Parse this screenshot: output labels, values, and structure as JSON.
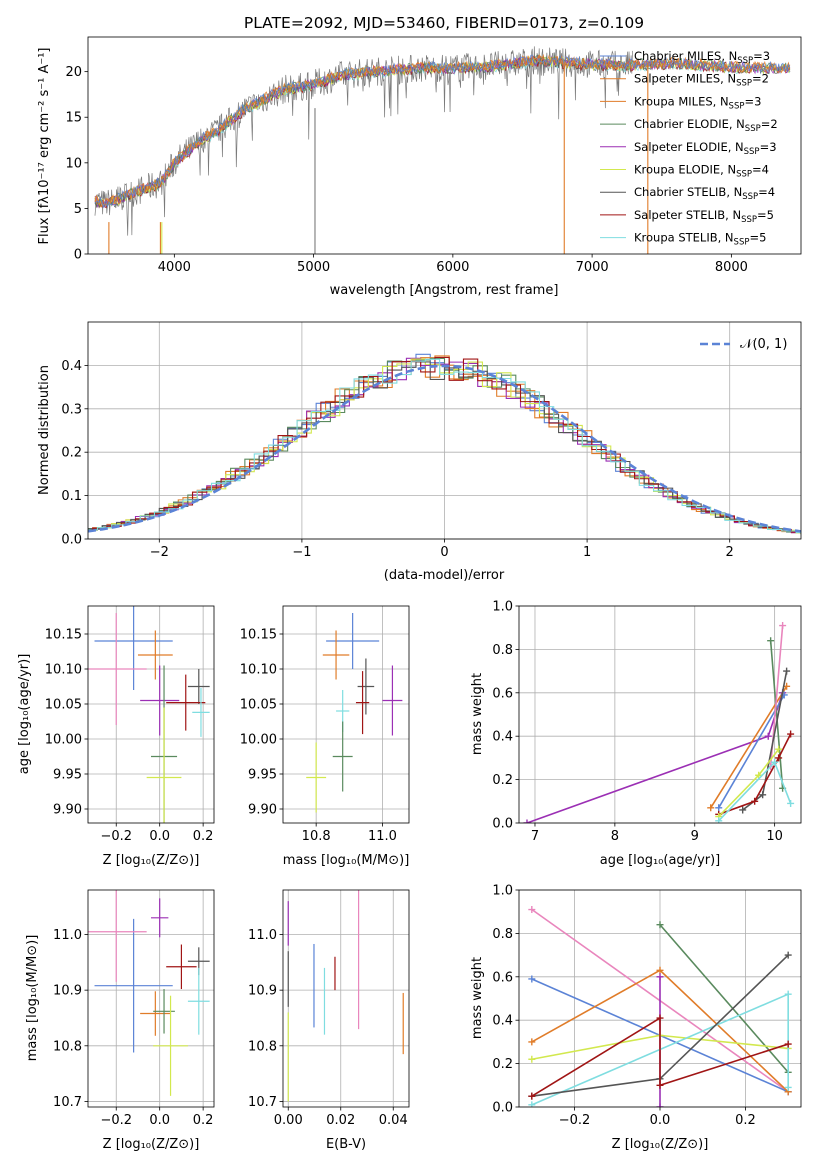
{
  "chart_data": [
    {
      "id": "spectrum",
      "type": "line",
      "title": "PLATE=2092, MJD=53460, FIBERID=0173, z=0.109",
      "xlabel": "wavelength [Angstrom, rest frame]",
      "ylabel": "Flux [fλ10⁻¹⁷ erg cm⁻² s⁻¹ A⁻¹]",
      "xlim": [
        3380,
        8500
      ],
      "ylim": [
        0,
        23.8
      ],
      "xticks": [
        4000,
        5000,
        6000,
        7000,
        8000
      ],
      "yticks": [
        0,
        5,
        10,
        15,
        20
      ],
      "grid": false,
      "legend_position": "upper-right",
      "continuum": {
        "x": [
          3430,
          3500,
          3600,
          3700,
          3800,
          3900,
          3950,
          4000,
          4100,
          4200,
          4300,
          4400,
          4500,
          4600,
          4700,
          4800,
          4900,
          5000,
          5200,
          5400,
          5600,
          5800,
          6000,
          6200,
          6400,
          6600,
          6800,
          7000,
          7200,
          7400,
          7600,
          7800,
          8000,
          8200,
          8400
        ],
        "y": [
          5.8,
          5.5,
          6.0,
          6.7,
          7.2,
          7.8,
          8.8,
          10.0,
          11.3,
          12.6,
          13.4,
          14.6,
          15.8,
          16.6,
          17.4,
          18.1,
          18.3,
          18.6,
          19.6,
          20.0,
          20.2,
          20.4,
          20.4,
          20.5,
          20.8,
          21.2,
          21.0,
          20.8,
          20.7,
          20.8,
          20.9,
          20.7,
          20.5,
          20.4,
          20.4
        ]
      },
      "observed_end": 7290,
      "series": [
        {
          "name": "Chabrier MILES, N",
          "n_ssp": "=3",
          "color": "#5b83d6"
        },
        {
          "name": "Salpeter MILES, N",
          "n_ssp": "=2",
          "color": "#e07c29"
        },
        {
          "name": "Kroupa MILES, N",
          "n_ssp": "=3",
          "color": "#e07c29"
        },
        {
          "name": "Chabrier ELODIE, N",
          "n_ssp": "=2",
          "color": "#5a8a5e"
        },
        {
          "name": "Salpeter ELODIE, N",
          "n_ssp": "=3",
          "color": "#9b2fb4"
        },
        {
          "name": "Kroupa ELODIE, N",
          "n_ssp": "=4",
          "color": "#d2e84e"
        },
        {
          "name": "Chabrier STELIB, N",
          "n_ssp": "=4",
          "color": "#555555"
        },
        {
          "name": "Salpeter STELIB, N",
          "n_ssp": "=5",
          "color": "#a01515"
        },
        {
          "name": "Kroupa STELIB, N",
          "n_ssp": "=5",
          "color": "#7fdde0"
        }
      ]
    },
    {
      "id": "residuals",
      "type": "line",
      "xlabel": "(data-model)/error",
      "ylabel": "Normed distribution",
      "xlim": [
        -2.5,
        2.5
      ],
      "ylim": [
        0,
        0.5
      ],
      "xticks": [
        -2,
        -1,
        0,
        1,
        2
      ],
      "yticks": [
        0.0,
        0.1,
        0.2,
        0.3,
        0.4
      ],
      "grid": true,
      "legend": "𝒩(0, 1)",
      "legend_position": "upper-right"
    },
    {
      "id": "age-vs-Z",
      "type": "scatter",
      "xlabel": "Z [log₁₀(Z/Z⊙)]",
      "ylabel": "age  [log₁₀(age/yr)]",
      "xlim": [
        -0.33,
        0.25
      ],
      "ylim": [
        9.88,
        10.19
      ],
      "xticks": [
        -0.2,
        0.0,
        0.2
      ],
      "yticks": [
        9.9,
        9.95,
        10.0,
        10.05,
        10.1,
        10.15
      ],
      "grid": true,
      "points": [
        {
          "color": "#5b83d6",
          "x": -0.12,
          "xerr": 0.18,
          "y": 10.14,
          "yerr": 0.07
        },
        {
          "color": "#e07c29",
          "x": -0.02,
          "xerr": 0.08,
          "y": 10.12,
          "yerr": 0.035
        },
        {
          "color": "#e986bd",
          "x": -0.2,
          "xerr": 0.14,
          "y": 10.1,
          "yerr": 0.08
        },
        {
          "color": "#9b2fb4",
          "x": 0.0,
          "xerr": 0.09,
          "y": 10.055,
          "yerr": 0.05
        },
        {
          "color": "#555555",
          "x": 0.18,
          "xerr": 0.05,
          "y": 10.075,
          "yerr": 0.025
        },
        {
          "color": "#a01515",
          "x": 0.12,
          "xerr": 0.09,
          "y": 10.052,
          "yerr": 0.04
        },
        {
          "color": "#7fdde0",
          "x": 0.19,
          "xerr": 0.04,
          "y": 10.038,
          "yerr": 0.035
        },
        {
          "color": "#5a8a5e",
          "x": 0.02,
          "xerr": 0.06,
          "y": 9.975,
          "yerr": 0.13
        },
        {
          "color": "#d2e84e",
          "x": 0.02,
          "xerr": 0.08,
          "y": 9.945,
          "yerr": 0.1
        }
      ]
    },
    {
      "id": "age-vs-mass",
      "type": "scatter",
      "xlabel": "mass [log₁₀(M/M⊙)]",
      "xlim": [
        10.7,
        11.08
      ],
      "ylim": [
        9.88,
        10.19
      ],
      "xticks": [
        10.8,
        11.0
      ],
      "yticks": [
        9.9,
        9.95,
        10.0,
        10.05,
        10.1,
        10.15
      ],
      "grid": true,
      "points": [
        {
          "color": "#5b83d6",
          "x": 10.91,
          "xerr": 0.08,
          "y": 10.14,
          "yerr": 0.04
        },
        {
          "color": "#e07c29",
          "x": 10.86,
          "xerr": 0.04,
          "y": 10.12,
          "yerr": 0.035
        },
        {
          "color": "#9b2fb4",
          "x": 11.03,
          "xerr": 0.03,
          "y": 10.055,
          "yerr": 0.05
        },
        {
          "color": "#555555",
          "x": 10.95,
          "xerr": 0.025,
          "y": 10.075,
          "yerr": 0.04
        },
        {
          "color": "#a01515",
          "x": 10.94,
          "xerr": 0.02,
          "y": 10.052,
          "yerr": 0.045
        },
        {
          "color": "#7fdde0",
          "x": 10.88,
          "xerr": 0.02,
          "y": 10.04,
          "yerr": 0.03
        },
        {
          "color": "#5a8a5e",
          "x": 10.88,
          "xerr": 0.03,
          "y": 9.975,
          "yerr": 0.05
        },
        {
          "color": "#d2e84e",
          "x": 10.8,
          "xerr": 0.03,
          "y": 9.945,
          "yerr": 0.05
        }
      ]
    },
    {
      "id": "mass-weight-vs-age",
      "type": "line",
      "xlabel": "age  [log₁₀(age/yr)]",
      "ylabel": "mass weight",
      "xlim": [
        6.8,
        10.33
      ],
      "ylim": [
        0,
        1.0
      ],
      "xticks": [
        7,
        8,
        9,
        10
      ],
      "yticks": [
        0.0,
        0.2,
        0.4,
        0.6,
        0.8,
        1.0
      ],
      "grid": true,
      "series": [
        {
          "color": "#9b2fb4",
          "x": [
            6.9,
            9.92,
            10.1
          ],
          "y": [
            0.0,
            0.4,
            0.6
          ]
        },
        {
          "color": "#e07c29",
          "x": [
            9.2,
            10.15
          ],
          "y": [
            0.07,
            0.63
          ]
        },
        {
          "color": "#5b83d6",
          "x": [
            9.3,
            10.12
          ],
          "y": [
            0.07,
            0.59
          ]
        },
        {
          "color": "#5a8a5e",
          "x": [
            9.95,
            10.1
          ],
          "y": [
            0.84,
            0.16
          ]
        },
        {
          "color": "#e986bd",
          "x": [
            10.1,
            9.95
          ],
          "y": [
            0.91,
            0.26
          ]
        },
        {
          "color": "#555555",
          "x": [
            9.6,
            9.85,
            10.15
          ],
          "y": [
            0.06,
            0.13,
            0.7
          ]
        },
        {
          "color": "#a01515",
          "x": [
            9.3,
            9.75,
            10.05,
            10.2
          ],
          "y": [
            0.04,
            0.1,
            0.3,
            0.41
          ]
        },
        {
          "color": "#d2e84e",
          "x": [
            9.3,
            9.8,
            10.05
          ],
          "y": [
            0.03,
            0.22,
            0.34
          ]
        },
        {
          "color": "#7fdde0",
          "x": [
            9.3,
            10.0,
            10.2
          ],
          "y": [
            0.01,
            0.28,
            0.09
          ]
        }
      ]
    },
    {
      "id": "mass-vs-Z",
      "type": "scatter",
      "xlabel": "Z [log₁₀(Z/Z⊙)]",
      "ylabel": "mass [log₁₀(M/M⊙)]",
      "xlim": [
        -0.33,
        0.25
      ],
      "ylim": [
        10.69,
        11.08
      ],
      "xticks": [
        -0.2,
        0.0,
        0.2
      ],
      "yticks": [
        10.7,
        10.8,
        10.9,
        11.0
      ],
      "grid": true,
      "points": [
        {
          "color": "#5b83d6",
          "x": -0.12,
          "xerr": 0.18,
          "y": 10.908,
          "yerr": 0.12
        },
        {
          "color": "#e986bd",
          "x": -0.2,
          "xerr": 0.14,
          "y": 11.005,
          "yerr": 0.09
        },
        {
          "color": "#9b2fb4",
          "x": 0.0,
          "xerr": 0.04,
          "y": 11.03,
          "yerr": 0.035
        },
        {
          "color": "#e07c29",
          "x": -0.02,
          "xerr": 0.07,
          "y": 10.858,
          "yerr": 0.04
        },
        {
          "color": "#5a8a5e",
          "x": 0.02,
          "xerr": 0.05,
          "y": 10.862,
          "yerr": 0.04
        },
        {
          "color": "#555555",
          "x": 0.18,
          "xerr": 0.05,
          "y": 10.952,
          "yerr": 0.025
        },
        {
          "color": "#a01515",
          "x": 0.1,
          "xerr": 0.07,
          "y": 10.942,
          "yerr": 0.04
        },
        {
          "color": "#7fdde0",
          "x": 0.18,
          "xerr": 0.05,
          "y": 10.88,
          "yerr": 0.06
        },
        {
          "color": "#d2e84e",
          "x": 0.05,
          "xerr": 0.08,
          "y": 10.8,
          "yerr": 0.09
        }
      ]
    },
    {
      "id": "mass-vs-EBV",
      "type": "scatter",
      "xlabel": "E(B-V)",
      "xlim": [
        -0.002,
        0.046
      ],
      "ylim": [
        10.69,
        11.08
      ],
      "xticks": [
        0.0,
        0.02,
        0.04
      ],
      "yticks": [
        10.7,
        10.8,
        10.9,
        11.0
      ],
      "grid": true,
      "points": [
        {
          "color": "#9b2fb4",
          "x": 0.0,
          "y": 11.02,
          "yerr": 0.04
        },
        {
          "color": "#d2e84e",
          "x": 0.0,
          "y": 10.78,
          "yerr": 0.08
        },
        {
          "color": "#555555",
          "x": 0.0,
          "y": 10.92,
          "yerr": 0.05
        },
        {
          "color": "#5b83d6",
          "x": 0.0098,
          "y": 10.908,
          "yerr": 0.075
        },
        {
          "color": "#7fdde0",
          "x": 0.0138,
          "y": 10.88,
          "yerr": 0.06
        },
        {
          "color": "#a01515",
          "x": 0.0178,
          "y": 10.93,
          "yerr": 0.03
        },
        {
          "color": "#e986bd",
          "x": 0.0268,
          "y": 10.97,
          "yerr": 0.14
        },
        {
          "color": "#e07c29",
          "x": 0.0438,
          "y": 10.84,
          "yerr": 0.055
        }
      ]
    },
    {
      "id": "mass-weight-vs-Z",
      "type": "line",
      "xlabel": "Z [log₁₀(Z/Z⊙)]",
      "ylabel": "mass weight",
      "xlim": [
        -0.33,
        0.33
      ],
      "ylim": [
        0,
        1.0
      ],
      "xticks": [
        -0.2,
        0.0,
        0.2
      ],
      "yticks": [
        0.0,
        0.2,
        0.4,
        0.6,
        0.8,
        1.0
      ],
      "grid": true,
      "series": [
        {
          "color": "#e986bd",
          "x": [
            -0.3,
            0.3
          ],
          "y": [
            0.91,
            0.07
          ]
        },
        {
          "color": "#5b83d6",
          "x": [
            -0.3,
            0.3
          ],
          "y": [
            0.59,
            0.07
          ]
        },
        {
          "color": "#5a8a5e",
          "x": [
            0.0,
            0.3
          ],
          "y": [
            0.84,
            0.16
          ]
        },
        {
          "color": "#e07c29",
          "x": [
            -0.3,
            0.0,
            0.3
          ],
          "y": [
            0.3,
            0.63,
            0.07
          ]
        },
        {
          "color": "#9b2fb4",
          "x": [
            0.0,
            0.0
          ],
          "y": [
            0.0,
            0.6
          ]
        },
        {
          "color": "#d2e84e",
          "x": [
            -0.3,
            0.0,
            0.3
          ],
          "y": [
            0.22,
            0.33,
            0.27
          ]
        },
        {
          "color": "#7fdde0",
          "x": [
            -0.3,
            0.3,
            0.3
          ],
          "y": [
            0.01,
            0.52,
            0.09
          ]
        },
        {
          "color": "#555555",
          "x": [
            -0.3,
            0.0,
            0.3
          ],
          "y": [
            0.05,
            0.13,
            0.7
          ]
        },
        {
          "color": "#a01515",
          "x": [
            -0.3,
            0.0,
            0.0,
            0.3
          ],
          "y": [
            0.05,
            0.41,
            0.1,
            0.29
          ]
        }
      ]
    }
  ]
}
